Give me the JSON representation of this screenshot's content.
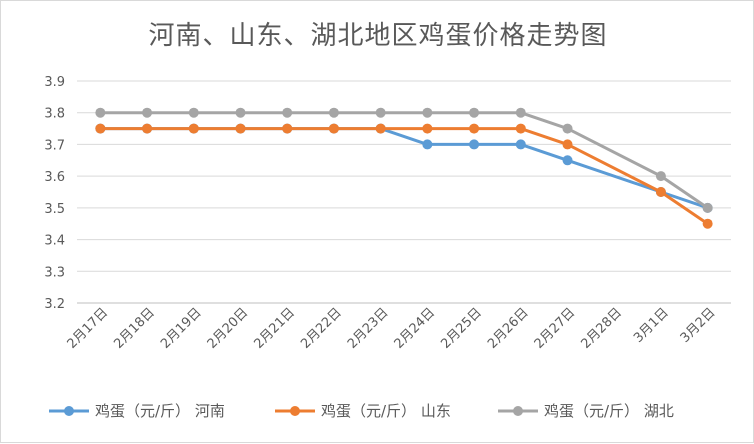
{
  "chart_data": {
    "type": "line",
    "title": "河南、山东、湖北地区鸡蛋价格走势图",
    "categories": [
      "2月17日",
      "2月18日",
      "2月19日",
      "2月20日",
      "2月21日",
      "2月22日",
      "2月23日",
      "2月24日",
      "2月25日",
      "2月26日",
      "2月27日",
      "2月28日",
      "3月1日",
      "3月2日"
    ],
    "ylim": [
      3.2,
      3.9
    ],
    "yticks": [
      "3.2",
      "3.3",
      "3.4",
      "3.5",
      "3.6",
      "3.7",
      "3.8",
      "3.9"
    ],
    "grid": true,
    "legend_position": "bottom",
    "series": [
      {
        "name": "鸡蛋（元/斤）  河南",
        "color": "#5B9BD5",
        "values": [
          3.75,
          3.75,
          3.75,
          3.75,
          3.75,
          3.75,
          3.75,
          3.7,
          3.7,
          3.7,
          3.65,
          null,
          3.55,
          3.5
        ]
      },
      {
        "name": "鸡蛋（元/斤）  山东",
        "color": "#ED7D31",
        "values": [
          3.75,
          3.75,
          3.75,
          3.75,
          3.75,
          3.75,
          3.75,
          3.75,
          3.75,
          3.75,
          3.7,
          null,
          3.55,
          3.45
        ]
      },
      {
        "name": "鸡蛋（元/斤）  湖北",
        "color": "#A5A5A5",
        "values": [
          3.8,
          3.8,
          3.8,
          3.8,
          3.8,
          3.8,
          3.8,
          3.8,
          3.8,
          3.8,
          3.75,
          null,
          3.6,
          3.5
        ]
      }
    ]
  }
}
